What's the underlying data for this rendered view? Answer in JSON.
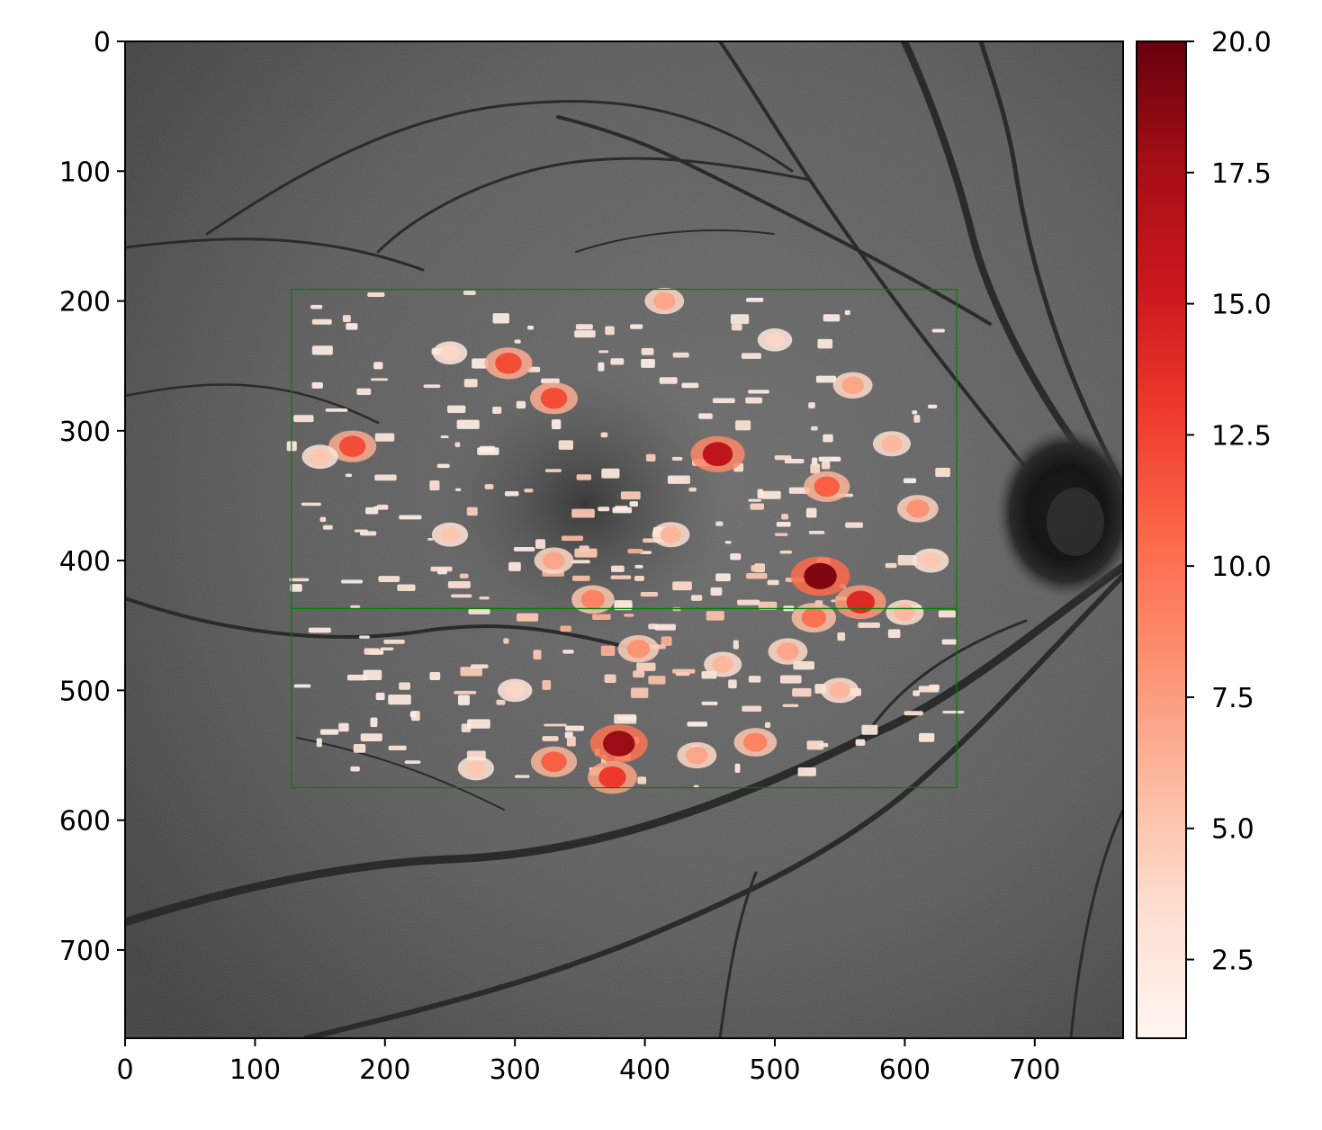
{
  "figure": {
    "description_type": "heatmap overlay on grayscale fundus image",
    "colormap": "Reds",
    "box_color": "#008000"
  },
  "chart_data": {
    "type": "heatmap",
    "title": "",
    "xlabel": "",
    "ylabel": "",
    "xlim": [
      0,
      768
    ],
    "ylim": [
      768,
      0
    ],
    "x_ticks": [
      0,
      100,
      200,
      300,
      400,
      500,
      600,
      700
    ],
    "y_ticks": [
      0,
      100,
      200,
      300,
      400,
      500,
      600,
      700
    ],
    "colorbar": {
      "range": [
        1,
        20
      ],
      "ticks": [
        "2.5",
        "5.0",
        "7.5",
        "10.0",
        "12.5",
        "15.0",
        "17.5",
        "20.0"
      ],
      "tick_values": [
        2.5,
        5.0,
        7.5,
        10.0,
        12.5,
        15.0,
        17.5,
        20.0
      ]
    },
    "regions": [
      {
        "x0": 128,
        "y0": 191,
        "x1": 640,
        "y1": 437
      },
      {
        "x0": 128,
        "y0": 437,
        "x1": 640,
        "y1": 575
      }
    ],
    "hotspots": [
      {
        "x": 535,
        "y": 412,
        "v": 19
      },
      {
        "x": 380,
        "y": 541,
        "v": 18
      },
      {
        "x": 456,
        "y": 318,
        "v": 16
      },
      {
        "x": 566,
        "y": 432,
        "v": 14
      },
      {
        "x": 295,
        "y": 248,
        "v": 12
      },
      {
        "x": 175,
        "y": 312,
        "v": 12
      },
      {
        "x": 330,
        "y": 275,
        "v": 12
      },
      {
        "x": 375,
        "y": 567,
        "v": 13
      },
      {
        "x": 330,
        "y": 555,
        "v": 11
      },
      {
        "x": 540,
        "y": 343,
        "v": 11
      },
      {
        "x": 530,
        "y": 444,
        "v": 10
      },
      {
        "x": 485,
        "y": 540,
        "v": 9
      },
      {
        "x": 395,
        "y": 468,
        "v": 8
      },
      {
        "x": 360,
        "y": 430,
        "v": 9
      },
      {
        "x": 330,
        "y": 400,
        "v": 7
      },
      {
        "x": 420,
        "y": 380,
        "v": 6
      },
      {
        "x": 600,
        "y": 440,
        "v": 6
      },
      {
        "x": 610,
        "y": 360,
        "v": 8
      },
      {
        "x": 560,
        "y": 265,
        "v": 7
      },
      {
        "x": 415,
        "y": 200,
        "v": 7
      },
      {
        "x": 550,
        "y": 500,
        "v": 6
      },
      {
        "x": 590,
        "y": 310,
        "v": 6
      },
      {
        "x": 250,
        "y": 380,
        "v": 5
      },
      {
        "x": 460,
        "y": 480,
        "v": 6
      },
      {
        "x": 510,
        "y": 470,
        "v": 7
      },
      {
        "x": 440,
        "y": 550,
        "v": 7
      },
      {
        "x": 270,
        "y": 560,
        "v": 5
      },
      {
        "x": 300,
        "y": 500,
        "v": 4
      },
      {
        "x": 620,
        "y": 400,
        "v": 5
      },
      {
        "x": 150,
        "y": 320,
        "v": 5
      },
      {
        "x": 500,
        "y": 230,
        "v": 4
      },
      {
        "x": 250,
        "y": 240,
        "v": 4
      }
    ]
  }
}
